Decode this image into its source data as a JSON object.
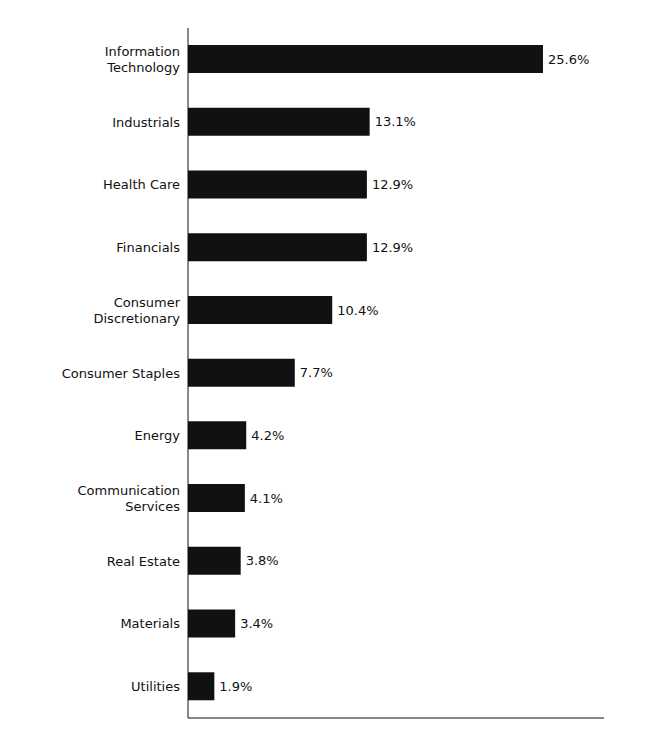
{
  "chart_data": {
    "type": "bar",
    "orientation": "horizontal",
    "categories": [
      "Information\nTechnology",
      "Industrials",
      "Health Care",
      "Financials",
      "Consumer\nDiscretionary",
      "Consumer Staples",
      "Energy",
      "Communication\nServices",
      "Real Estate",
      "Materials",
      "Utilities"
    ],
    "values": [
      25.6,
      13.1,
      12.9,
      12.9,
      10.4,
      7.7,
      4.2,
      4.1,
      3.8,
      3.4,
      1.9
    ],
    "value_labels": [
      "25.6%",
      "13.1%",
      "12.9%",
      "12.9%",
      "10.4%",
      "7.7%",
      "4.2%",
      "4.1%",
      "3.8%",
      "3.4%",
      "1.9%"
    ],
    "color": "#111111",
    "xlim": [
      0,
      30
    ],
    "grid": false,
    "data_labels": true,
    "tick_labels": "y"
  }
}
